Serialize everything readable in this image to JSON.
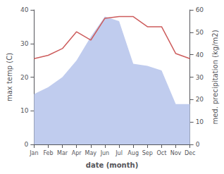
{
  "chart_data": {
    "type": "line",
    "xlabel": "date (month)",
    "ylabel": "max temp (C)",
    "y2label": "med. precipitation (kg/m2)",
    "categories": [
      "Jan",
      "Feb",
      "Mar",
      "Apr",
      "May",
      "Jun",
      "Jul",
      "Aug",
      "Sep",
      "Oct",
      "Nov",
      "Dec"
    ],
    "series": [
      {
        "type": "area",
        "axis": "y2",
        "color": "#c0ccee",
        "values": [
          22.5,
          25.5,
          30.0,
          37.5,
          48.0,
          57.0,
          55.0,
          36.0,
          35.0,
          33.0,
          18.0,
          18.0
        ]
      },
      {
        "type": "line",
        "color": "#cd5c5c",
        "values": [
          25.5,
          26.5,
          28.5,
          33.5,
          31.0,
          37.5,
          38.0,
          38.0,
          35.0,
          35.0,
          27.0,
          25.5
        ]
      }
    ],
    "ylim": [
      0,
      40
    ],
    "yticks": [
      0,
      10,
      20,
      30,
      40
    ],
    "y2lim": [
      0,
      60
    ],
    "y2ticks": [
      0,
      10,
      20,
      30,
      40,
      50,
      60
    ],
    "grid": false
  }
}
